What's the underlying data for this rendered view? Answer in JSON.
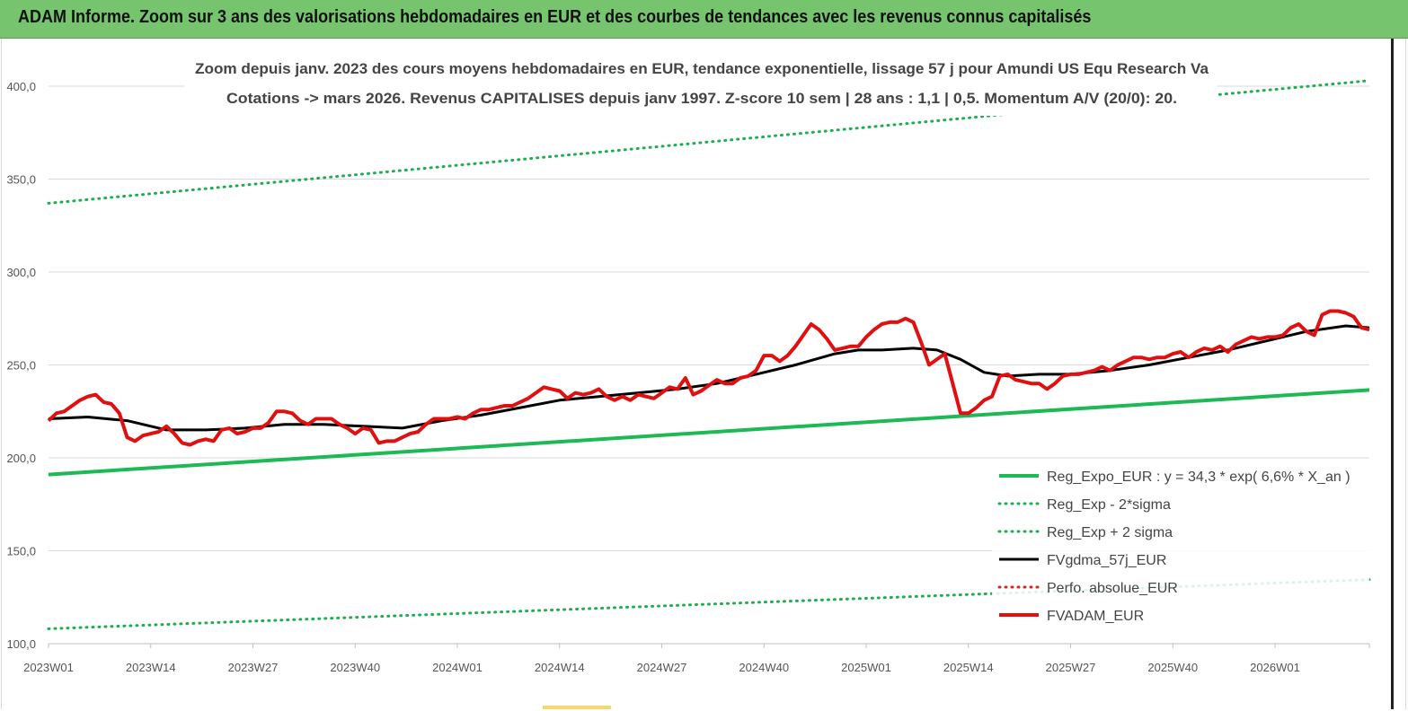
{
  "header": {
    "title": "ADAM Informe. Zoom sur 3 ans des valorisations hebdomadaires en EUR et des courbes de tendances avec les revenus connus capitalisés"
  },
  "chart_data": {
    "type": "line",
    "title": "Zoom depuis janv. 2023 des cours moyens hebdomadaires en EUR, tendance exponentielle, lissage 57 j pour Amundi US Equ Research Va",
    "subtitle": "Cotations -> mars 2026. Revenus CAPITALISES depuis janv 1997. Z-score 10 sem | 28 ans : 1,1 | 0,5. Momentum A/V (20/0): 20.",
    "xlabel": "",
    "ylabel": "",
    "ylim": [
      100,
      400
    ],
    "yticks": [
      "100,0",
      "150,0",
      "200,0",
      "250,0",
      "300,0",
      "350,0",
      "400,0"
    ],
    "ytick_values": [
      100,
      150,
      200,
      250,
      300,
      350,
      400
    ],
    "x_range_weeks": [
      0,
      168
    ],
    "xticks": [
      "2023W01",
      "2023W14",
      "2023W27",
      "2023W40",
      "2024W01",
      "2024W14",
      "2024W27",
      "2024W40",
      "2025W01",
      "2025W14",
      "2025W27",
      "2025W40",
      "2026W01"
    ],
    "xtick_weeks": [
      0,
      13,
      26,
      39,
      52,
      65,
      78,
      91,
      104,
      117,
      130,
      143,
      156
    ],
    "grid": "horizontal",
    "legend_position": "bottom-right",
    "series": [
      {
        "name": "Reg_Expo_EUR : y = 34,3 * exp( 6,6% *  X_an )",
        "color": "#1db954",
        "style": "solid-thick",
        "x": [
          0,
          168
        ],
        "values": [
          191,
          236.5
        ]
      },
      {
        "name": "Reg_Exp - 2*sigma",
        "color": "#1fae4f",
        "style": "dotted",
        "x": [
          0,
          168
        ],
        "values": [
          108,
          134.5
        ]
      },
      {
        "name": "Reg_Exp + 2 sigma",
        "color": "#1fae4f",
        "style": "dotted",
        "x": [
          0,
          168
        ],
        "values": [
          337,
          403
        ]
      },
      {
        "name": "FVgdma_57j_EUR",
        "color": "#000000",
        "style": "solid",
        "x": [
          0,
          5,
          10,
          15,
          20,
          25,
          30,
          35,
          40,
          45,
          50,
          55,
          60,
          65,
          70,
          75,
          80,
          85,
          90,
          95,
          100,
          103,
          106,
          110,
          113,
          116,
          119,
          122,
          126,
          130,
          135,
          140,
          145,
          150,
          155,
          160,
          165,
          168
        ],
        "values": [
          221,
          222,
          220,
          215,
          215,
          216,
          218,
          218,
          217,
          216,
          220,
          223,
          227,
          231,
          233,
          235,
          237,
          240,
          245,
          250,
          256,
          258,
          258,
          259,
          258,
          253,
          246,
          244,
          245,
          245,
          247,
          250,
          254,
          258,
          263,
          268,
          271,
          270
        ]
      },
      {
        "name": "Perfo. absolue_EUR",
        "color": "#e02020",
        "style": "dotted",
        "x": [],
        "values": []
      },
      {
        "name": "FVADAM_EUR",
        "color": "#e01010",
        "style": "solid-thick",
        "x": [
          0,
          1,
          2,
          3,
          4,
          5,
          6,
          7,
          8,
          9,
          10,
          11,
          12,
          13,
          14,
          15,
          16,
          17,
          18,
          19,
          20,
          21,
          22,
          23,
          24,
          25,
          26,
          27,
          28,
          29,
          30,
          31,
          32,
          33,
          34,
          35,
          36,
          37,
          38,
          39,
          40,
          41,
          42,
          43,
          44,
          45,
          46,
          47,
          48,
          49,
          50,
          51,
          52,
          53,
          54,
          55,
          56,
          57,
          58,
          59,
          60,
          61,
          62,
          63,
          64,
          65,
          66,
          67,
          68,
          69,
          70,
          71,
          72,
          73,
          74,
          75,
          76,
          77,
          78,
          79,
          80,
          81,
          82,
          83,
          84,
          85,
          86,
          87,
          88,
          89,
          90,
          91,
          92,
          93,
          94,
          95,
          96,
          97,
          98,
          99,
          100,
          101,
          102,
          103,
          104,
          105,
          106,
          107,
          108,
          109,
          110,
          111,
          112,
          113,
          114,
          115,
          116,
          117,
          118,
          119,
          120,
          121,
          122,
          123,
          124,
          125,
          126,
          127,
          128,
          129,
          130,
          131,
          132,
          133,
          134,
          135,
          136,
          137,
          138,
          139,
          140,
          141,
          142,
          143,
          144,
          145,
          146,
          147,
          148,
          149,
          150,
          151,
          152,
          153,
          154,
          155,
          156,
          157,
          158,
          159,
          160,
          161,
          162,
          163,
          164,
          165,
          166,
          167,
          168
        ],
        "values": [
          220,
          224,
          225,
          228,
          231,
          233,
          234,
          230,
          229,
          224,
          211,
          209,
          212,
          213,
          214,
          217,
          213,
          208,
          207,
          209,
          210,
          209,
          215,
          216,
          213,
          214,
          216,
          216,
          219,
          225,
          225,
          224,
          220,
          218,
          221,
          221,
          221,
          218,
          216,
          213,
          216,
          215,
          208,
          209,
          209,
          211,
          213,
          214,
          218,
          221,
          221,
          221,
          222,
          221,
          224,
          226,
          226,
          227,
          228,
          228,
          230,
          232,
          235,
          238,
          237,
          236,
          232,
          235,
          234,
          235,
          237,
          233,
          231,
          233,
          231,
          234,
          233,
          232,
          235,
          238,
          237,
          243,
          234,
          236,
          239,
          242,
          240,
          240,
          243,
          244,
          247,
          255,
          255,
          252,
          255,
          260,
          266,
          272,
          269,
          264,
          258,
          259,
          260,
          260,
          265,
          269,
          272,
          273,
          273,
          275,
          273,
          262,
          250,
          253,
          256,
          240,
          224,
          224,
          227,
          231,
          233,
          244,
          245,
          242,
          241,
          240,
          240,
          237,
          240,
          244,
          245,
          245,
          246,
          247,
          249,
          247,
          250,
          252,
          254,
          254,
          253,
          254,
          254,
          256,
          257,
          254,
          257,
          259,
          258,
          260,
          257,
          261,
          263,
          265,
          264,
          265,
          265,
          266,
          270,
          272,
          268,
          266,
          277,
          279,
          279,
          278,
          276,
          270,
          269
        ]
      }
    ]
  }
}
